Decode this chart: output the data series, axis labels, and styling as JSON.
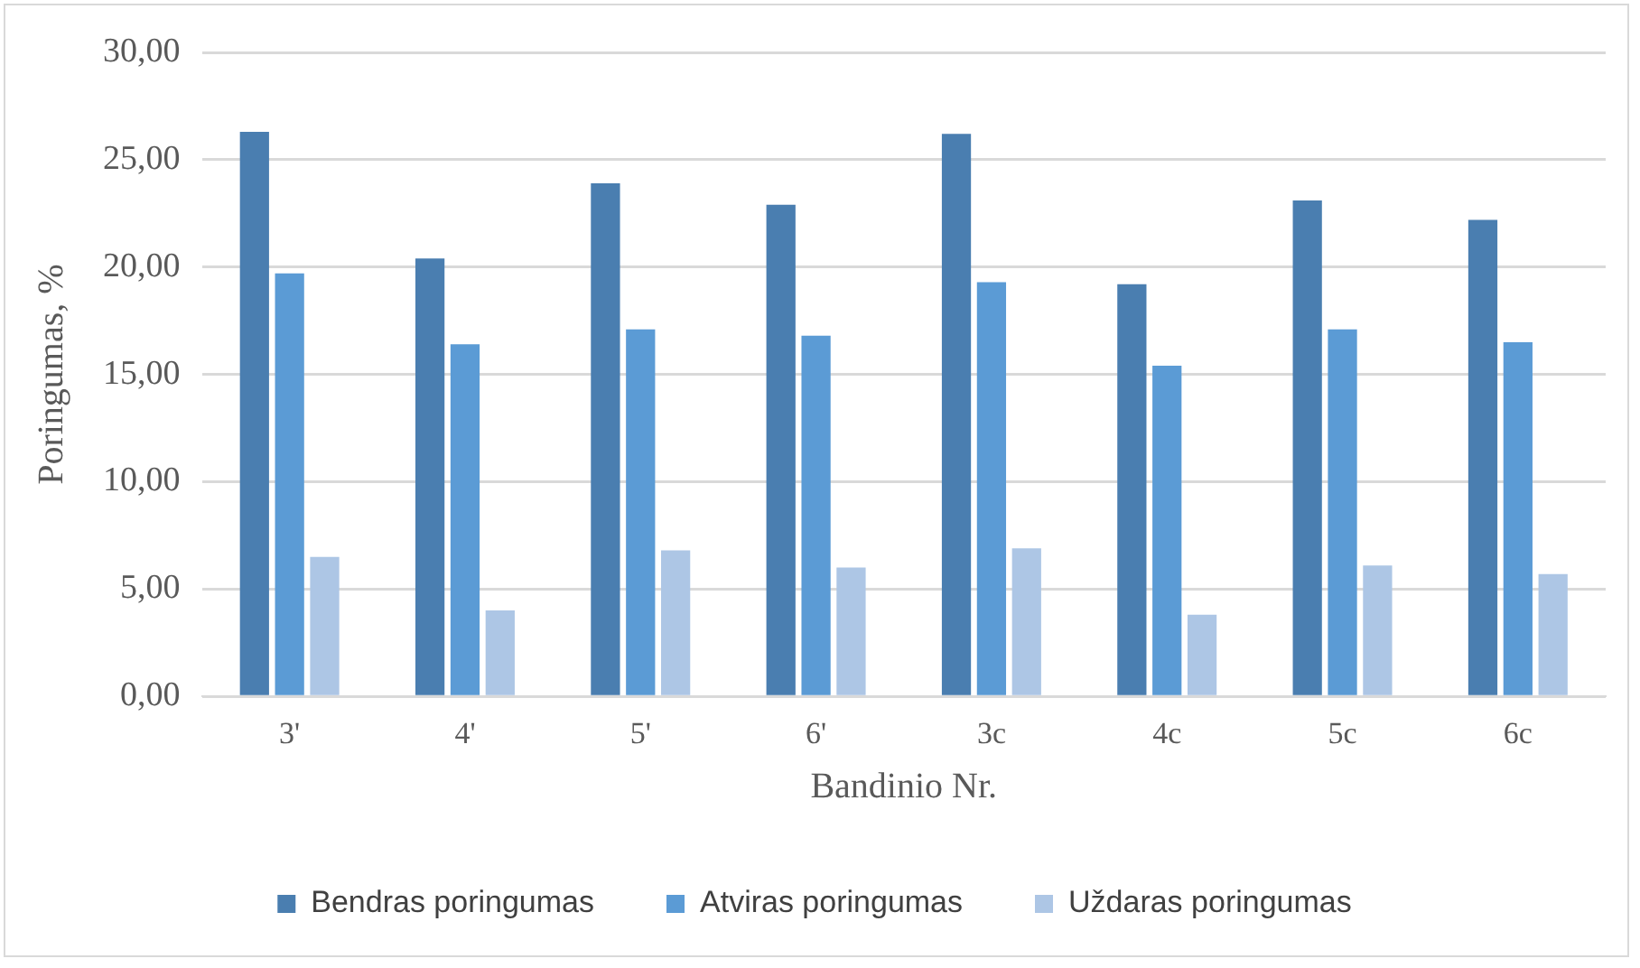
{
  "chart_data": {
    "type": "bar",
    "xlabel": "Bandinio Nr.",
    "ylabel": "Poringumas, %",
    "categories": [
      "3'",
      "4'",
      "5'",
      "6'",
      "3c",
      "4c",
      "5c",
      "6c"
    ],
    "series": [
      {
        "name": "Bendras poringumas",
        "color": "#4a7eb0",
        "values": [
          26.3,
          20.4,
          23.9,
          22.9,
          26.2,
          19.2,
          23.1,
          22.2
        ]
      },
      {
        "name": "Atviras poringumas",
        "color": "#5b9bd5",
        "values": [
          19.7,
          16.4,
          17.1,
          16.8,
          19.3,
          15.4,
          17.1,
          16.5
        ]
      },
      {
        "name": "Uždaras poringumas",
        "color": "#adc6e5",
        "values": [
          6.5,
          4.0,
          6.8,
          6.0,
          6.9,
          3.8,
          6.1,
          5.7
        ]
      }
    ],
    "ylim": [
      0,
      30
    ],
    "yticks": [
      {
        "value": 0,
        "label": "0,00"
      },
      {
        "value": 5,
        "label": "5,00"
      },
      {
        "value": 10,
        "label": "10,00"
      },
      {
        "value": 15,
        "label": "15,00"
      },
      {
        "value": 20,
        "label": "20,00"
      },
      {
        "value": 25,
        "label": "25,00"
      },
      {
        "value": 30,
        "label": "30,00"
      }
    ],
    "grid": "y",
    "legend": "bottom"
  }
}
